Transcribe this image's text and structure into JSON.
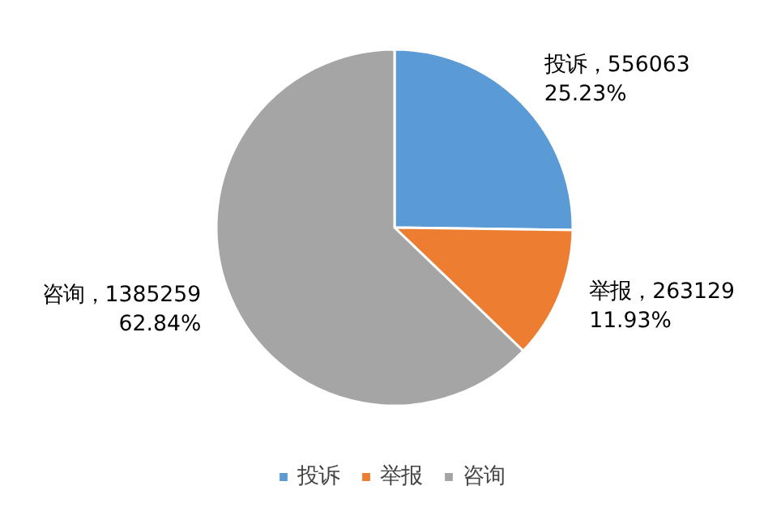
{
  "chart_data": {
    "type": "pie",
    "categories": [
      "投诉",
      "举报",
      "咨询"
    ],
    "values": [
      556063,
      263129,
      1385259
    ],
    "colors": [
      "#5b9bd5",
      "#ed7d31",
      "#a5a5a5"
    ],
    "value_labels": [
      "投诉，556063\n25.23%",
      "举报，263129\n11.93%",
      "咨询，1385259\n62.84%"
    ],
    "legend": "bottom"
  }
}
